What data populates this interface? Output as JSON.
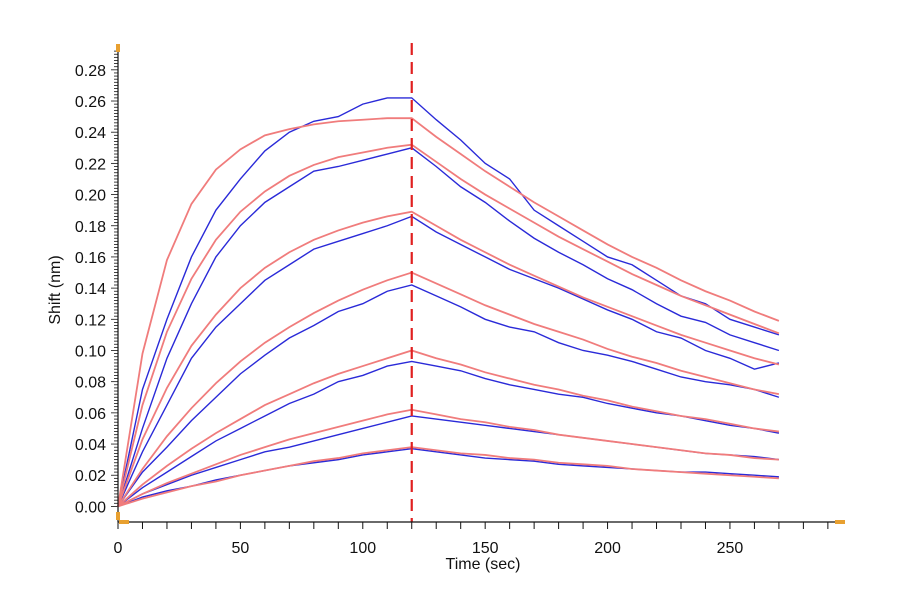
{
  "chart_data": {
    "type": "line",
    "title": "",
    "xlabel": "Time (sec)",
    "ylabel": "Shift (nm)",
    "xlim": [
      0,
      297
    ],
    "ylim": [
      -0.01,
      0.294
    ],
    "xticks": [
      0,
      50,
      100,
      150,
      200,
      250
    ],
    "yticks": [
      0.0,
      0.02,
      0.04,
      0.06,
      0.08,
      0.1,
      0.12,
      0.14,
      0.16,
      0.18,
      0.2,
      0.22,
      0.24,
      0.26,
      0.28
    ],
    "grid": false,
    "legend": "none",
    "annotations": [
      {
        "type": "vertical-dashed-line",
        "x": 120,
        "color": "#e02020"
      }
    ],
    "colors": {
      "measured": "#2a2ad8",
      "fit": "#f07c7c",
      "marker": "#e8a030"
    },
    "x": [
      0,
      10,
      20,
      30,
      40,
      50,
      60,
      70,
      80,
      90,
      100,
      110,
      120,
      130,
      140,
      150,
      160,
      170,
      180,
      190,
      200,
      210,
      220,
      230,
      240,
      250,
      260,
      270
    ],
    "measured": [
      [
        0,
        0.075,
        0.12,
        0.16,
        0.19,
        0.21,
        0.228,
        0.24,
        0.247,
        0.25,
        0.258,
        0.262,
        0.262,
        0.248,
        0.235,
        0.22,
        0.21,
        0.19,
        0.18,
        0.17,
        0.16,
        0.155,
        0.145,
        0.135,
        0.13,
        0.12,
        0.115,
        0.11
      ],
      [
        0,
        0.05,
        0.095,
        0.13,
        0.16,
        0.18,
        0.195,
        0.205,
        0.215,
        0.218,
        0.222,
        0.226,
        0.23,
        0.218,
        0.205,
        0.195,
        0.183,
        0.172,
        0.163,
        0.155,
        0.146,
        0.139,
        0.13,
        0.122,
        0.118,
        0.11,
        0.105,
        0.1
      ],
      [
        0,
        0.035,
        0.065,
        0.095,
        0.115,
        0.13,
        0.145,
        0.155,
        0.165,
        0.17,
        0.175,
        0.18,
        0.186,
        0.176,
        0.168,
        0.16,
        0.152,
        0.146,
        0.14,
        0.133,
        0.126,
        0.12,
        0.112,
        0.108,
        0.1,
        0.095,
        0.088,
        0.092
      ],
      [
        0,
        0.022,
        0.038,
        0.055,
        0.07,
        0.085,
        0.097,
        0.108,
        0.116,
        0.125,
        0.13,
        0.138,
        0.142,
        0.135,
        0.128,
        0.12,
        0.115,
        0.112,
        0.105,
        0.1,
        0.097,
        0.093,
        0.088,
        0.083,
        0.08,
        0.078,
        0.075,
        0.07
      ],
      [
        0,
        0.012,
        0.022,
        0.032,
        0.042,
        0.05,
        0.058,
        0.066,
        0.072,
        0.08,
        0.084,
        0.09,
        0.093,
        0.09,
        0.087,
        0.082,
        0.078,
        0.075,
        0.072,
        0.07,
        0.066,
        0.063,
        0.06,
        0.058,
        0.055,
        0.052,
        0.05,
        0.047
      ],
      [
        0,
        0.008,
        0.014,
        0.02,
        0.025,
        0.03,
        0.035,
        0.038,
        0.042,
        0.046,
        0.05,
        0.054,
        0.058,
        0.056,
        0.054,
        0.052,
        0.05,
        0.048,
        0.046,
        0.044,
        0.042,
        0.04,
        0.038,
        0.036,
        0.034,
        0.033,
        0.032,
        0.03
      ],
      [
        0,
        0.006,
        0.01,
        0.013,
        0.017,
        0.02,
        0.023,
        0.026,
        0.028,
        0.03,
        0.033,
        0.035,
        0.037,
        0.035,
        0.033,
        0.031,
        0.03,
        0.029,
        0.027,
        0.026,
        0.025,
        0.024,
        0.023,
        0.022,
        0.022,
        0.021,
        0.02,
        0.019
      ]
    ],
    "fit": [
      [
        0,
        0.098,
        0.158,
        0.194,
        0.216,
        0.229,
        0.238,
        0.242,
        0.245,
        0.247,
        0.248,
        0.249,
        0.249,
        0.237,
        0.226,
        0.215,
        0.205,
        0.195,
        0.186,
        0.177,
        0.168,
        0.16,
        0.153,
        0.145,
        0.138,
        0.132,
        0.125,
        0.119
      ],
      [
        0,
        0.065,
        0.112,
        0.146,
        0.171,
        0.189,
        0.202,
        0.212,
        0.219,
        0.224,
        0.227,
        0.23,
        0.232,
        0.221,
        0.21,
        0.2,
        0.191,
        0.182,
        0.173,
        0.165,
        0.157,
        0.149,
        0.142,
        0.135,
        0.129,
        0.123,
        0.117,
        0.111
      ],
      [
        0,
        0.043,
        0.076,
        0.103,
        0.123,
        0.14,
        0.153,
        0.163,
        0.171,
        0.177,
        0.182,
        0.186,
        0.189,
        0.18,
        0.171,
        0.163,
        0.155,
        0.148,
        0.141,
        0.134,
        0.128,
        0.122,
        0.116,
        0.11,
        0.105,
        0.1,
        0.095,
        0.091
      ],
      [
        0,
        0.024,
        0.045,
        0.063,
        0.079,
        0.093,
        0.105,
        0.115,
        0.124,
        0.132,
        0.139,
        0.145,
        0.15,
        0.143,
        0.136,
        0.129,
        0.123,
        0.117,
        0.112,
        0.107,
        0.101,
        0.096,
        0.092,
        0.087,
        0.083,
        0.079,
        0.075,
        0.072
      ],
      [
        0,
        0.014,
        0.026,
        0.037,
        0.047,
        0.056,
        0.065,
        0.072,
        0.079,
        0.085,
        0.09,
        0.095,
        0.1,
        0.095,
        0.091,
        0.086,
        0.082,
        0.078,
        0.075,
        0.071,
        0.068,
        0.064,
        0.061,
        0.058,
        0.056,
        0.053,
        0.05,
        0.048
      ],
      [
        0,
        0.008,
        0.015,
        0.021,
        0.027,
        0.033,
        0.038,
        0.043,
        0.047,
        0.051,
        0.055,
        0.059,
        0.062,
        0.059,
        0.056,
        0.054,
        0.051,
        0.049,
        0.046,
        0.044,
        0.042,
        0.04,
        0.038,
        0.036,
        0.034,
        0.033,
        0.031,
        0.03
      ],
      [
        0,
        0.005,
        0.009,
        0.013,
        0.016,
        0.02,
        0.023,
        0.026,
        0.029,
        0.031,
        0.034,
        0.036,
        0.038,
        0.036,
        0.034,
        0.033,
        0.031,
        0.03,
        0.028,
        0.027,
        0.026,
        0.024,
        0.023,
        0.022,
        0.021,
        0.02,
        0.019,
        0.018
      ]
    ]
  }
}
